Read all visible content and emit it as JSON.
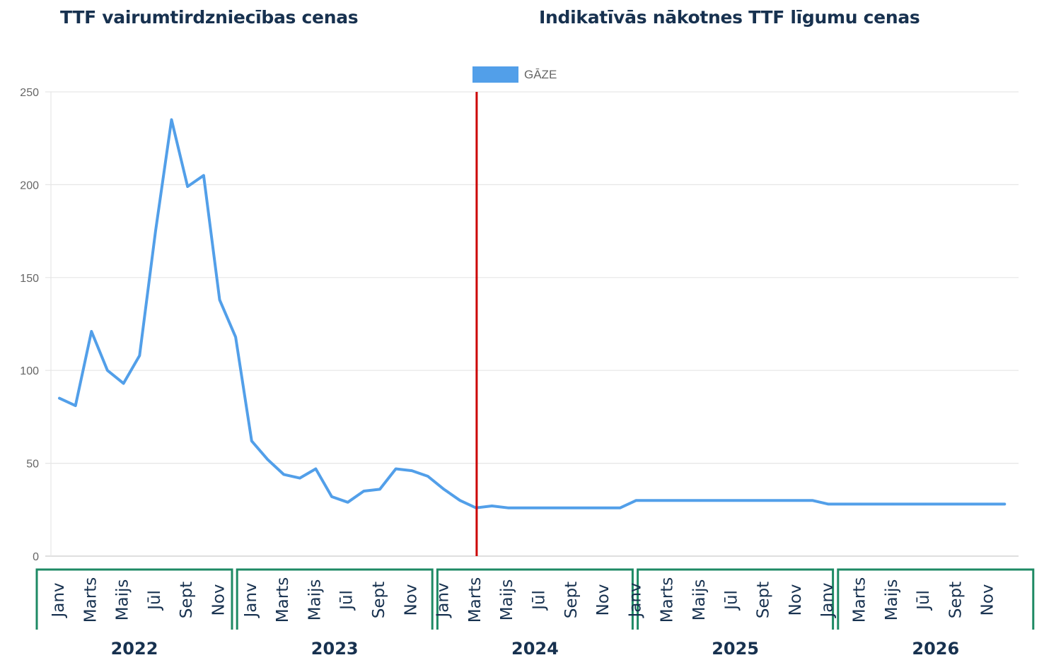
{
  "headings": {
    "left": "TTF vairumtirdzniecības cenas",
    "right": "Indikatīvās nākotnes TTF līgumu cenas"
  },
  "chart_data": {
    "type": "line",
    "legend": {
      "label": "GĀZE",
      "position": "top-center"
    },
    "ylim": [
      0,
      250
    ],
    "yticks": [
      0,
      50,
      100,
      150,
      200,
      250
    ],
    "grid": true,
    "series": [
      {
        "name": "GĀZE",
        "color": "#529fe9",
        "values": [
          85,
          81,
          121,
          100,
          93,
          108,
          175,
          235,
          199,
          205,
          138,
          118,
          62,
          52,
          44,
          42,
          47,
          32,
          29,
          35,
          36,
          47,
          46,
          43,
          36,
          30,
          26,
          27,
          26,
          26,
          26,
          26,
          26,
          26,
          26,
          26,
          30,
          30,
          30,
          30,
          30,
          30,
          30,
          30,
          30,
          30,
          30,
          30,
          28,
          28,
          28,
          28,
          28,
          28,
          28,
          28,
          28,
          28,
          28,
          28
        ]
      }
    ],
    "divider": {
      "after_month": "2024-03",
      "color": "#cc0000"
    },
    "month_labels": [
      "Janv",
      "Marts",
      "Maijs",
      "Jūl",
      "Sept",
      "Nov"
    ],
    "years": [
      "2022",
      "2023",
      "2024",
      "2025",
      "2026"
    ],
    "year_box_color": "#1e8a64"
  }
}
